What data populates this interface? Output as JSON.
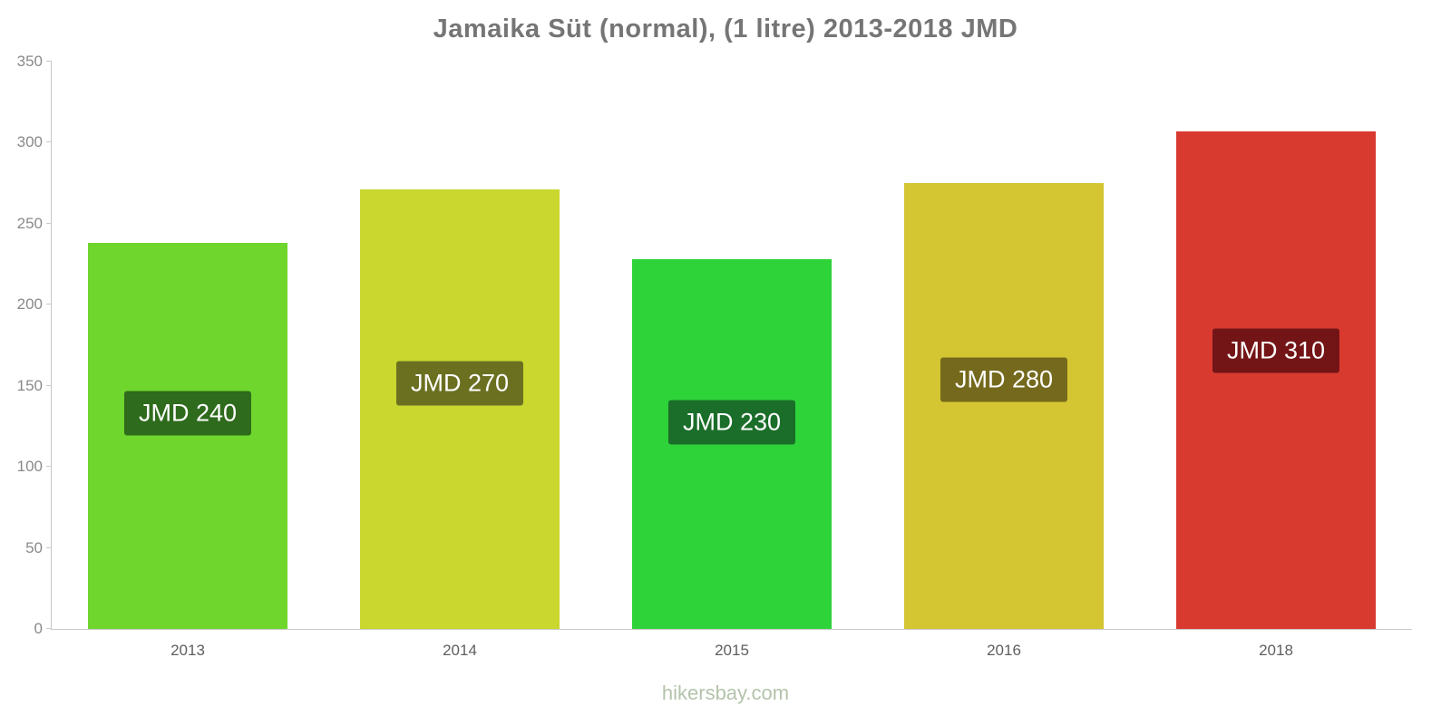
{
  "title": "Jamaika Süt (normal), (1 litre) 2013-2018 JMD",
  "footer": "hikersbay.com",
  "chart_data": {
    "type": "bar",
    "title": "Jamaika Süt (normal), (1 litre) 2013-2018 JMD",
    "categories": [
      "2013",
      "2014",
      "2015",
      "2016",
      "2018"
    ],
    "values": [
      238,
      271,
      228,
      275,
      307
    ],
    "data_labels": [
      "JMD 240",
      "JMD 270",
      "JMD 230",
      "JMD 280",
      "JMD 310"
    ],
    "bar_colors": [
      "#6fd62d",
      "#c9d72e",
      "#2ed33a",
      "#d4c532",
      "#d93a30"
    ],
    "label_bg_colors": [
      "#2e6b1c",
      "#6b7021",
      "#1b6e2a",
      "#75691d",
      "#731517"
    ],
    "xlabel": "",
    "ylabel": "",
    "ylim": [
      0,
      350
    ],
    "yticks": [
      0,
      50,
      100,
      150,
      200,
      250,
      300,
      350
    ],
    "grid": false,
    "legend": false,
    "currency": "JMD"
  }
}
